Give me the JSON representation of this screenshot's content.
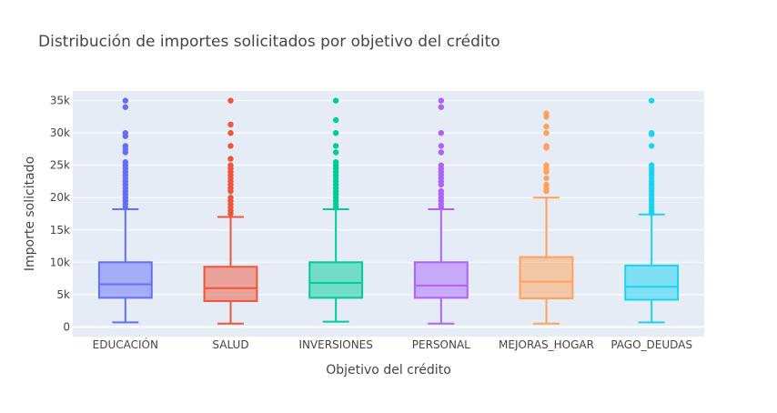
{
  "chart_data": {
    "type": "box",
    "title": "Distribución de importes solicitados por objetivo del crédito",
    "xlabel": "Objetivo del crédito",
    "ylabel": "Importe solicitado",
    "ylim": [
      -1500,
      36500
    ],
    "y_ticks": [
      0,
      5000,
      10000,
      15000,
      20000,
      25000,
      30000,
      35000
    ],
    "y_tick_labels": [
      "0",
      "5k",
      "10k",
      "15k",
      "20k",
      "25k",
      "30k",
      "35k"
    ],
    "categories": [
      "EDUCACIÓN",
      "SALUD",
      "INVERSIONES",
      "PERSONAL",
      "MEJORAS_HOGAR",
      "PAGO_DEUDAS"
    ],
    "series": [
      {
        "name": "EDUCACIÓN",
        "color": "#636efa",
        "min": 700,
        "q1": 4500,
        "median": 6600,
        "q3": 10000,
        "max": 18200,
        "outliers": [
          18500,
          19000,
          19500,
          20000,
          20500,
          21000,
          21500,
          22000,
          22500,
          23000,
          23500,
          24000,
          24500,
          25000,
          25500,
          27000,
          27500,
          28000,
          29500,
          30000,
          34000,
          35000
        ]
      },
      {
        "name": "SALUD",
        "color": "#ef553b",
        "min": 500,
        "q1": 4000,
        "median": 6000,
        "q3": 9300,
        "max": 17000,
        "outliers": [
          17500,
          18000,
          18500,
          19000,
          19500,
          20000,
          21000,
          21500,
          22000,
          22500,
          23000,
          23500,
          24000,
          24500,
          25000,
          26000,
          28000,
          30000,
          31300,
          35000
        ]
      },
      {
        "name": "INVERSIONES",
        "color": "#00cc96",
        "min": 800,
        "q1": 4500,
        "median": 6800,
        "q3": 10000,
        "max": 18200,
        "outliers": [
          18500,
          19000,
          19500,
          20000,
          20500,
          21000,
          21500,
          22000,
          22500,
          23000,
          23500,
          24000,
          24500,
          25000,
          25500,
          27000,
          28000,
          30000,
          32000,
          35000
        ]
      },
      {
        "name": "PERSONAL",
        "color": "#ab63fa",
        "min": 500,
        "q1": 4500,
        "median": 6400,
        "q3": 10000,
        "max": 18200,
        "outliers": [
          18500,
          19000,
          19500,
          20000,
          20500,
          21000,
          22000,
          22500,
          23000,
          23500,
          24000,
          24500,
          25000,
          27000,
          28000,
          30000,
          34000,
          35000
        ]
      },
      {
        "name": "MEJORAS_HOGAR",
        "color": "#ffa15a",
        "min": 500,
        "q1": 4400,
        "median": 7000,
        "q3": 10800,
        "max": 20000,
        "outliers": [
          21000,
          21500,
          22000,
          23000,
          24000,
          24500,
          25000,
          27700,
          28000,
          30000,
          31000,
          32500,
          33000
        ]
      },
      {
        "name": "PAGO_DEUDAS",
        "color": "#19d3f3",
        "min": 700,
        "q1": 4200,
        "median": 6200,
        "q3": 9500,
        "max": 17400,
        "outliers": [
          17600,
          18000,
          18500,
          19000,
          19500,
          20000,
          20500,
          21000,
          21500,
          22000,
          22500,
          23000,
          23500,
          24000,
          24500,
          25000,
          28000,
          29800,
          30000,
          35000
        ]
      }
    ]
  }
}
